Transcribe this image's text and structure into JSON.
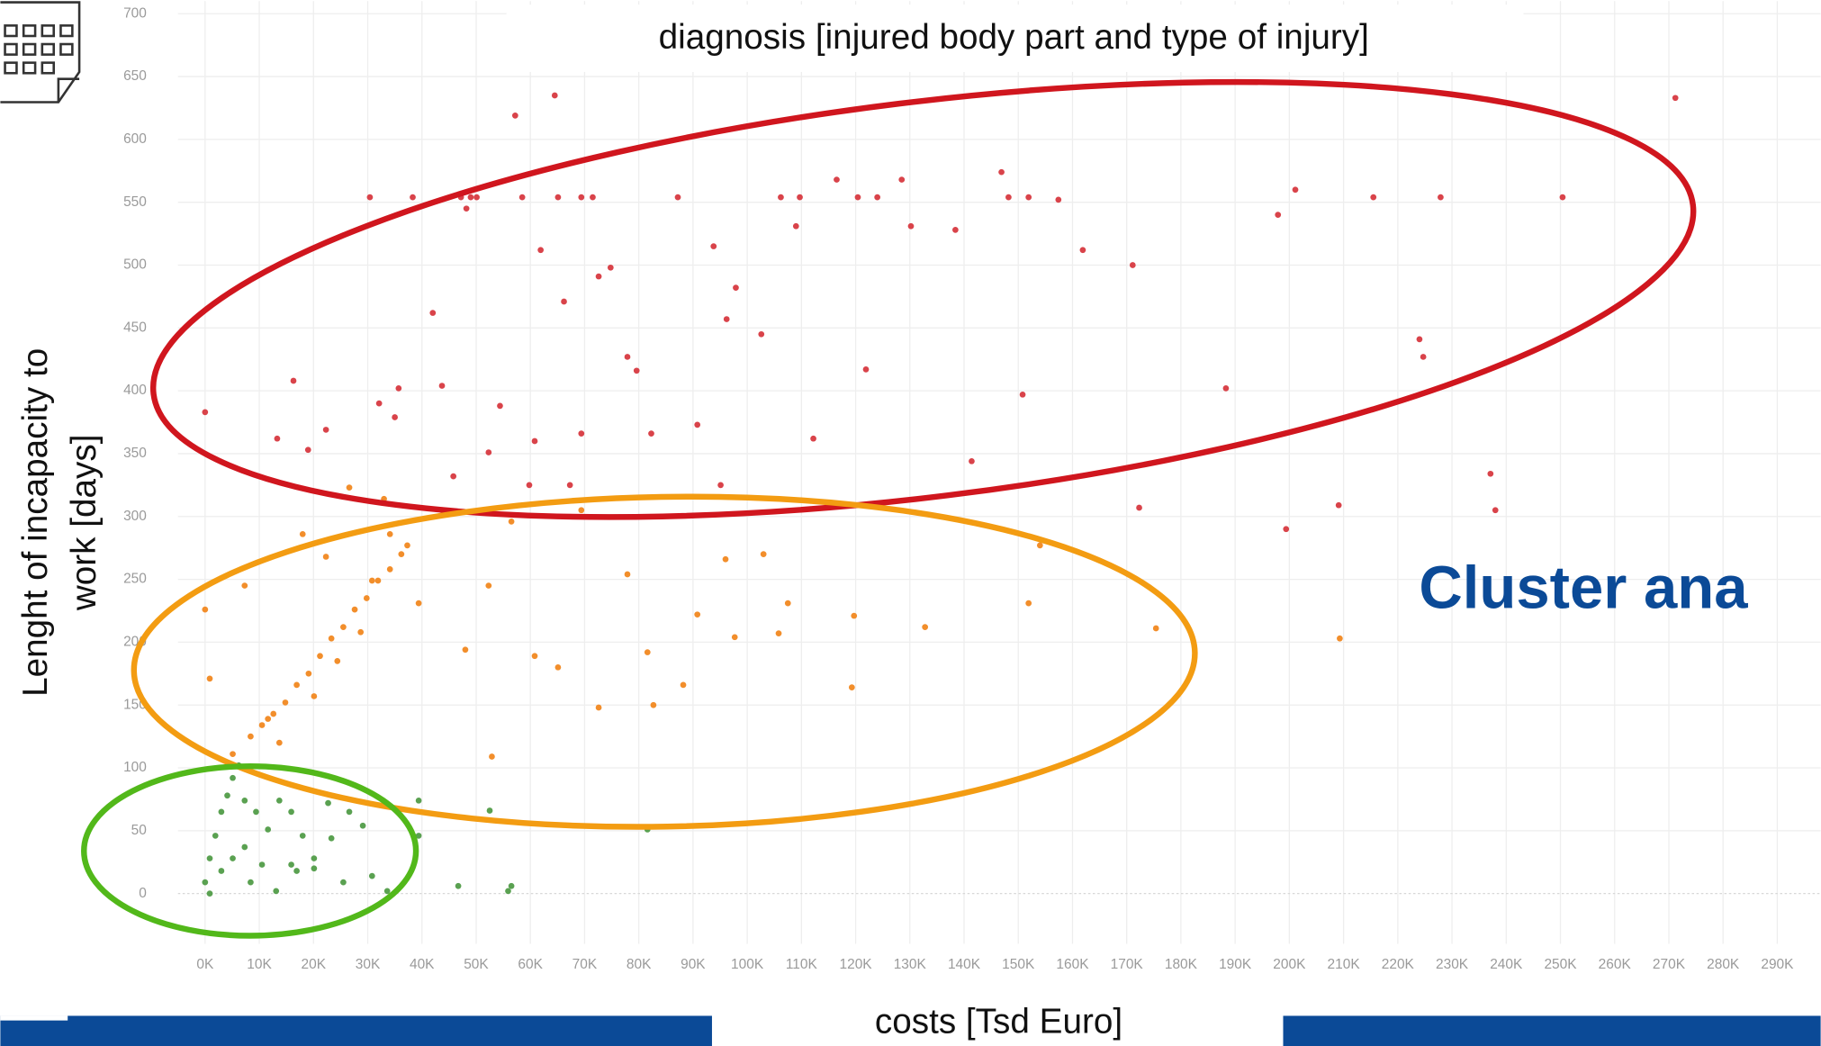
{
  "chart_data": {
    "type": "scatter",
    "title": "diagnosis [injured body part and type of injury]",
    "ylabel": [
      "Lenght of incapacity to",
      "work [days]"
    ],
    "xlabel": "costs [Tsd Euro]",
    "annotation": "Cluster ana",
    "xlim": [
      -5000,
      298000
    ],
    "ylim": [
      -40,
      710
    ],
    "grid": true,
    "xticks": [
      {
        "value": 0,
        "label": "0K"
      },
      {
        "value": 10000,
        "label": "10K"
      },
      {
        "value": 20000,
        "label": "20K"
      },
      {
        "value": 30000,
        "label": "30K"
      },
      {
        "value": 40000,
        "label": "40K"
      },
      {
        "value": 50000,
        "label": "50K"
      },
      {
        "value": 60000,
        "label": "60K"
      },
      {
        "value": 70000,
        "label": "70K"
      },
      {
        "value": 80000,
        "label": "80K"
      },
      {
        "value": 90000,
        "label": "90K"
      },
      {
        "value": 100000,
        "label": "100K"
      },
      {
        "value": 110000,
        "label": "110K"
      },
      {
        "value": 120000,
        "label": "120K"
      },
      {
        "value": 130000,
        "label": "130K"
      },
      {
        "value": 140000,
        "label": "140K"
      },
      {
        "value": 150000,
        "label": "150K"
      },
      {
        "value": 160000,
        "label": "160K"
      },
      {
        "value": 170000,
        "label": "170K"
      },
      {
        "value": 180000,
        "label": "180K"
      },
      {
        "value": 190000,
        "label": "190K"
      },
      {
        "value": 200000,
        "label": "200K"
      },
      {
        "value": 210000,
        "label": "210K"
      },
      {
        "value": 220000,
        "label": "220K"
      },
      {
        "value": 230000,
        "label": "230K"
      },
      {
        "value": 240000,
        "label": "240K"
      },
      {
        "value": 250000,
        "label": "250K"
      },
      {
        "value": 260000,
        "label": "260K"
      },
      {
        "value": 270000,
        "label": "270K"
      },
      {
        "value": 280000,
        "label": "280K"
      },
      {
        "value": 290000,
        "label": "290K"
      }
    ],
    "yticks": [
      0,
      50,
      100,
      150,
      200,
      250,
      300,
      350,
      400,
      450,
      500,
      550,
      600,
      650,
      700
    ],
    "series": [
      {
        "color": "#d9434a",
        "x": [
          0,
          16300,
          13300,
          19000,
          22300,
          30400,
          32100,
          35000,
          35700,
          38300,
          42000,
          43700,
          47200,
          48200,
          49000,
          50100,
          57200,
          58500,
          61900,
          64500,
          65100,
          66200,
          69400,
          71500,
          72600,
          74800,
          77900,
          79600,
          87200,
          93800,
          96200,
          97900,
          102600,
          106200,
          109000,
          109700,
          116500,
          120400,
          124000,
          128500,
          130200,
          138400,
          146900,
          148200,
          151900,
          157400,
          161900,
          171100,
          150800,
          121900,
          112200,
          188300,
          197900,
          201100,
          215500,
          224000,
          224700,
          227900,
          250400,
          271200,
          237100,
          238000,
          209100,
          199400,
          172300,
          141400,
          54400,
          60800,
          69400,
          82300,
          90800,
          95100,
          59800,
          45800,
          52300,
          67300
        ],
        "values": [
          383,
          408,
          362,
          353,
          369,
          554,
          390,
          379,
          402,
          554,
          462,
          404,
          554,
          545,
          554,
          554,
          619,
          554,
          512,
          635,
          554,
          471,
          554,
          554,
          491,
          498,
          427,
          416,
          554,
          515,
          457,
          482,
          445,
          554,
          531,
          554,
          568,
          554,
          554,
          568,
          531,
          528,
          574,
          554,
          554,
          552,
          512,
          500,
          397,
          417,
          362,
          402,
          540,
          560,
          554,
          441,
          427,
          554,
          554,
          633,
          334,
          305,
          309,
          290,
          307,
          344,
          388,
          360,
          366,
          366,
          373,
          325,
          325,
          332,
          351,
          325
        ]
      },
      {
        "color": "#f28e2b",
        "x": [
          0,
          860,
          7300,
          11600,
          18000,
          22300,
          26600,
          30800,
          33000,
          37300,
          39400,
          43700,
          48000,
          52300,
          56500,
          60800,
          65100,
          69400,
          72600,
          77900,
          81600,
          82700,
          88200,
          90800,
          96000,
          97700,
          103000,
          105800,
          107500,
          119700,
          119300,
          132800,
          151900,
          154000,
          175400,
          209300,
          52900,
          5100,
          8400,
          10500,
          12600,
          14800,
          16900,
          19100,
          21200,
          23300,
          25500,
          27600,
          29800,
          31900,
          34100,
          36200,
          13700,
          20100,
          24400,
          28700,
          34100
        ],
        "values": [
          226,
          171,
          245,
          139,
          286,
          268,
          323,
          249,
          314,
          277,
          231,
          305,
          194,
          245,
          296,
          189,
          180,
          305,
          148,
          254,
          192,
          150,
          166,
          222,
          266,
          204,
          270,
          207,
          231,
          221,
          164,
          212,
          231,
          277,
          211,
          203,
          109,
          111,
          125,
          134,
          143,
          152,
          166,
          175,
          189,
          203,
          212,
          226,
          235,
          249,
          258,
          270,
          120,
          157,
          185,
          208,
          286
        ]
      },
      {
        "color": "#5aa151",
        "x": [
          0,
          860,
          1900,
          3000,
          4100,
          5100,
          6200,
          7300,
          9400,
          11600,
          13700,
          15900,
          18000,
          20100,
          22700,
          23300,
          26600,
          30800,
          33600,
          39400,
          46700,
          55900,
          56500,
          13100,
          860,
          3000,
          5100,
          7300,
          8400,
          10500,
          15900,
          16900,
          20100,
          25500,
          39400,
          29100,
          52500,
          81600
        ],
        "values": [
          9,
          28,
          46,
          65,
          78,
          92,
          102,
          74,
          65,
          51,
          74,
          65,
          46,
          28,
          72,
          44,
          65,
          14,
          2,
          46,
          6,
          2,
          6,
          2,
          0,
          18,
          28,
          37,
          9,
          23,
          23,
          18,
          20,
          9,
          74,
          54,
          66,
          51
        ]
      }
    ]
  }
}
